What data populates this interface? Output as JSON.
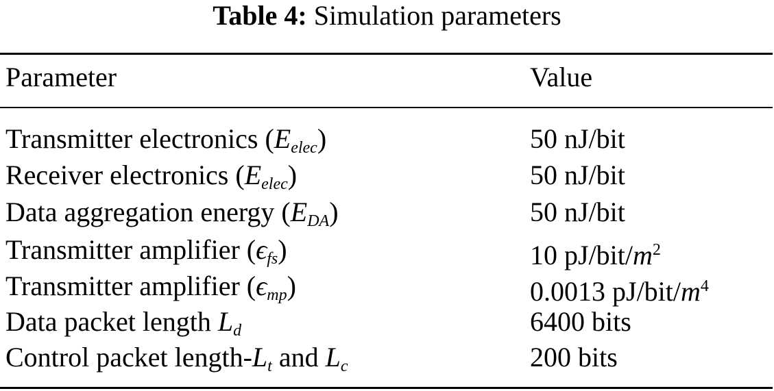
{
  "title": {
    "label": "Table 4:",
    "text": "Simulation parameters"
  },
  "table": {
    "header": [
      "Parameter",
      "Value"
    ],
    "rows": [
      [
        [
          "Transmitter electronics (",
          "E",
          "elec",
          ")"
        ],
        [
          "50 nJ/bit"
        ]
      ],
      [
        [
          "Receiver electronics (",
          "E",
          "elec",
          ")"
        ],
        [
          "50 nJ/bit"
        ]
      ],
      [
        [
          "Data aggregation energy (",
          "E",
          "DA",
          ")"
        ],
        [
          "50 nJ/bit"
        ]
      ],
      [
        [
          "Transmitter amplifier (",
          "ϵ",
          "fs",
          ")"
        ],
        [
          "10 pJ/bit/",
          "m",
          "2"
        ]
      ],
      [
        [
          "Transmitter amplifier (",
          "ϵ",
          "mp",
          ")"
        ],
        [
          "0.0013 pJ/bit/",
          "m",
          "4"
        ]
      ],
      [
        [
          "Data packet length ",
          "L",
          "d"
        ],
        [
          "6400 bits"
        ]
      ],
      [
        [
          "Control packet length-",
          "L",
          "t",
          " and ",
          "L",
          "c"
        ],
        [
          "200 bits"
        ]
      ]
    ]
  }
}
